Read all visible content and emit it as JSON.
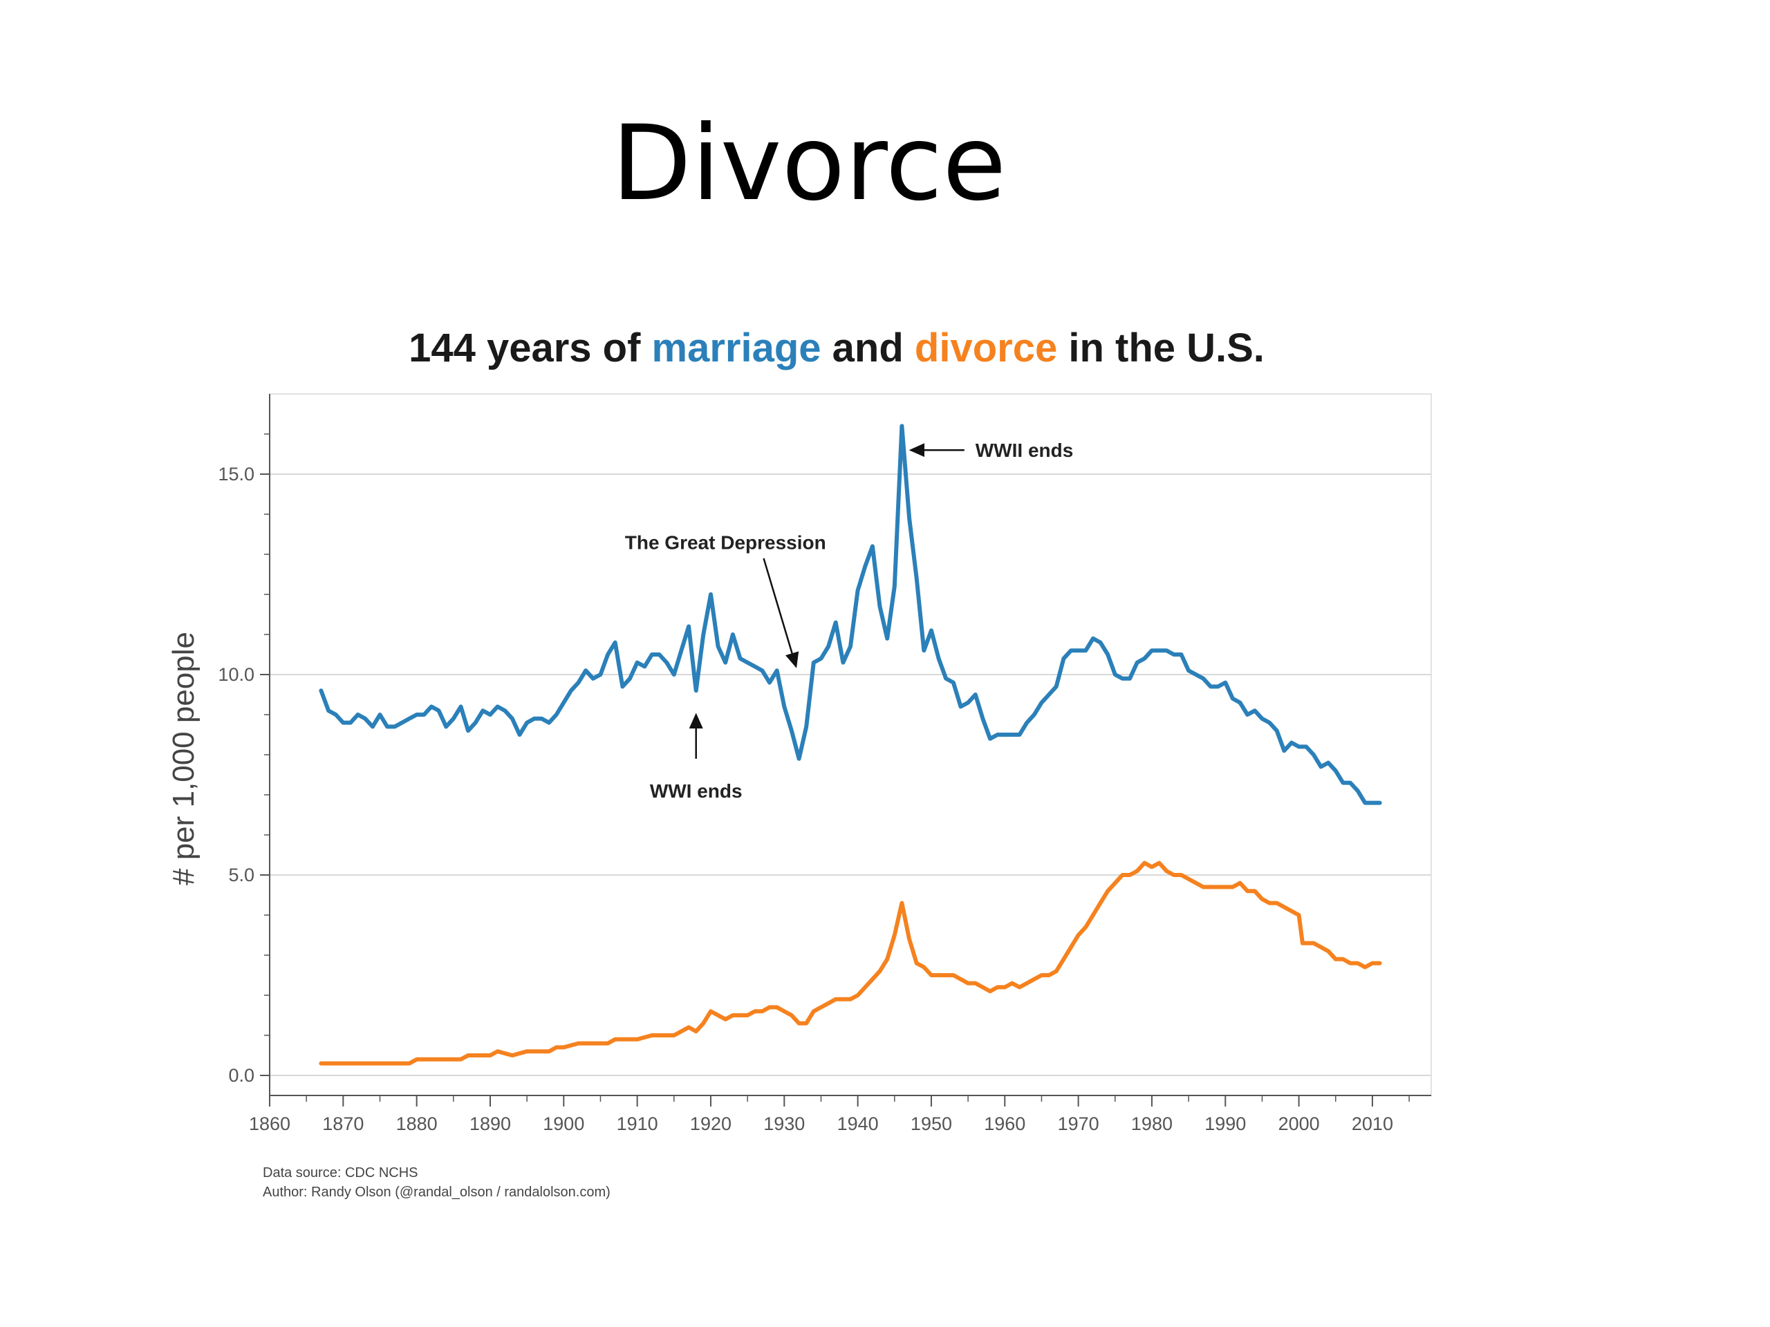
{
  "slide": {
    "title": "Divorce"
  },
  "chart_data": {
    "type": "line",
    "title_parts": [
      {
        "text": "144 years of ",
        "style": "plain"
      },
      {
        "text": "marriage",
        "style": "marriage"
      },
      {
        "text": " and ",
        "style": "plain"
      },
      {
        "text": "divorce",
        "style": "divorce"
      },
      {
        "text": " in the U.S.",
        "style": "plain"
      }
    ],
    "xlabel": "",
    "ylabel": "# per 1,000 people",
    "xlim": [
      1860,
      2018
    ],
    "ylim": [
      -0.5,
      17
    ],
    "x_ticks": [
      1860,
      1870,
      1880,
      1890,
      1900,
      1910,
      1920,
      1930,
      1940,
      1950,
      1960,
      1970,
      1980,
      1990,
      2000,
      2010
    ],
    "x_tick_labels": [
      "1860",
      "1870",
      "1880",
      "1890",
      "1900",
      "1910",
      "1920",
      "1930",
      "1940",
      "1950",
      "1960",
      "1970",
      "1980",
      "1990",
      "2000",
      "2010"
    ],
    "y_ticks": [
      0,
      5,
      10,
      15
    ],
    "y_tick_labels": [
      "0.0",
      "5.0",
      "10.0",
      "15.0"
    ],
    "grid": "horizontal",
    "colors": {
      "marriage": "#2b80b9",
      "divorce": "#f5821f",
      "grid": "#d8d8d8",
      "axis": "#555555"
    },
    "series": [
      {
        "key": "marriage",
        "points": [
          [
            1867,
            9.6
          ],
          [
            1868,
            9.1
          ],
          [
            1869,
            9.0
          ],
          [
            1870,
            8.8
          ],
          [
            1871,
            8.8
          ],
          [
            1872,
            9.0
          ],
          [
            1873,
            8.9
          ],
          [
            1874,
            8.7
          ],
          [
            1875,
            9.0
          ],
          [
            1876,
            8.7
          ],
          [
            1877,
            8.7
          ],
          [
            1878,
            8.8
          ],
          [
            1879,
            8.9
          ],
          [
            1880,
            9.0
          ],
          [
            1881,
            9.0
          ],
          [
            1882,
            9.2
          ],
          [
            1883,
            9.1
          ],
          [
            1884,
            8.7
          ],
          [
            1885,
            8.9
          ],
          [
            1886,
            9.2
          ],
          [
            1887,
            8.6
          ],
          [
            1888,
            8.8
          ],
          [
            1889,
            9.1
          ],
          [
            1890,
            9.0
          ],
          [
            1891,
            9.2
          ],
          [
            1892,
            9.1
          ],
          [
            1893,
            8.9
          ],
          [
            1894,
            8.5
          ],
          [
            1895,
            8.8
          ],
          [
            1896,
            8.9
          ],
          [
            1897,
            8.9
          ],
          [
            1898,
            8.8
          ],
          [
            1899,
            9.0
          ],
          [
            1900,
            9.3
          ],
          [
            1901,
            9.6
          ],
          [
            1902,
            9.8
          ],
          [
            1903,
            10.1
          ],
          [
            1904,
            9.9
          ],
          [
            1905,
            10.0
          ],
          [
            1906,
            10.5
          ],
          [
            1907,
            10.8
          ],
          [
            1908,
            9.7
          ],
          [
            1909,
            9.9
          ],
          [
            1910,
            10.3
          ],
          [
            1911,
            10.2
          ],
          [
            1912,
            10.5
          ],
          [
            1913,
            10.5
          ],
          [
            1914,
            10.3
          ],
          [
            1915,
            10.0
          ],
          [
            1916,
            10.6
          ],
          [
            1917,
            11.2
          ],
          [
            1918,
            9.6
          ],
          [
            1919,
            11.0
          ],
          [
            1920,
            12.0
          ],
          [
            1921,
            10.7
          ],
          [
            1922,
            10.3
          ],
          [
            1923,
            11.0
          ],
          [
            1924,
            10.4
          ],
          [
            1925,
            10.3
          ],
          [
            1926,
            10.2
          ],
          [
            1927,
            10.1
          ],
          [
            1928,
            9.8
          ],
          [
            1929,
            10.1
          ],
          [
            1930,
            9.2
          ],
          [
            1931,
            8.6
          ],
          [
            1932,
            7.9
          ],
          [
            1933,
            8.7
          ],
          [
            1934,
            10.3
          ],
          [
            1935,
            10.4
          ],
          [
            1936,
            10.7
          ],
          [
            1937,
            11.3
          ],
          [
            1938,
            10.3
          ],
          [
            1939,
            10.7
          ],
          [
            1940,
            12.1
          ],
          [
            1941,
            12.7
          ],
          [
            1942,
            13.2
          ],
          [
            1943,
            11.7
          ],
          [
            1944,
            10.9
          ],
          [
            1945,
            12.2
          ],
          [
            1946,
            16.2
          ],
          [
            1947,
            13.9
          ],
          [
            1948,
            12.4
          ],
          [
            1949,
            10.6
          ],
          [
            1950,
            11.1
          ],
          [
            1951,
            10.4
          ],
          [
            1952,
            9.9
          ],
          [
            1953,
            9.8
          ],
          [
            1954,
            9.2
          ],
          [
            1955,
            9.3
          ],
          [
            1956,
            9.5
          ],
          [
            1957,
            8.9
          ],
          [
            1958,
            8.4
          ],
          [
            1959,
            8.5
          ],
          [
            1960,
            8.5
          ],
          [
            1961,
            8.5
          ],
          [
            1962,
            8.5
          ],
          [
            1963,
            8.8
          ],
          [
            1964,
            9.0
          ],
          [
            1965,
            9.3
          ],
          [
            1966,
            9.5
          ],
          [
            1967,
            9.7
          ],
          [
            1968,
            10.4
          ],
          [
            1969,
            10.6
          ],
          [
            1970,
            10.6
          ],
          [
            1971,
            10.6
          ],
          [
            1972,
            10.9
          ],
          [
            1973,
            10.8
          ],
          [
            1974,
            10.5
          ],
          [
            1975,
            10.0
          ],
          [
            1976,
            9.9
          ],
          [
            1977,
            9.9
          ],
          [
            1978,
            10.3
          ],
          [
            1979,
            10.4
          ],
          [
            1980,
            10.6
          ],
          [
            1981,
            10.6
          ],
          [
            1982,
            10.6
          ],
          [
            1983,
            10.5
          ],
          [
            1984,
            10.5
          ],
          [
            1985,
            10.1
          ],
          [
            1986,
            10.0
          ],
          [
            1987,
            9.9
          ],
          [
            1988,
            9.7
          ],
          [
            1989,
            9.7
          ],
          [
            1990,
            9.8
          ],
          [
            1991,
            9.4
          ],
          [
            1992,
            9.3
          ],
          [
            1993,
            9.0
          ],
          [
            1994,
            9.1
          ],
          [
            1995,
            8.9
          ],
          [
            1996,
            8.8
          ],
          [
            1997,
            8.6
          ],
          [
            1998,
            8.1
          ],
          [
            1999,
            8.3
          ],
          [
            2000,
            8.2
          ],
          [
            2001,
            8.2
          ],
          [
            2002,
            8.0
          ],
          [
            2003,
            7.7
          ],
          [
            2004,
            7.8
          ],
          [
            2005,
            7.6
          ],
          [
            2006,
            7.3
          ],
          [
            2007,
            7.3
          ],
          [
            2008,
            7.1
          ],
          [
            2009,
            6.8
          ],
          [
            2010,
            6.8
          ],
          [
            2011,
            6.8
          ]
        ]
      },
      {
        "key": "divorce",
        "points": [
          [
            1867,
            0.3
          ],
          [
            1870,
            0.3
          ],
          [
            1875,
            0.3
          ],
          [
            1879,
            0.3
          ],
          [
            1880,
            0.4
          ],
          [
            1885,
            0.4
          ],
          [
            1886,
            0.4
          ],
          [
            1887,
            0.5
          ],
          [
            1890,
            0.5
          ],
          [
            1891,
            0.6
          ],
          [
            1893,
            0.5
          ],
          [
            1895,
            0.6
          ],
          [
            1898,
            0.6
          ],
          [
            1899,
            0.7
          ],
          [
            1900,
            0.7
          ],
          [
            1902,
            0.8
          ],
          [
            1906,
            0.8
          ],
          [
            1907,
            0.9
          ],
          [
            1910,
            0.9
          ],
          [
            1912,
            1.0
          ],
          [
            1915,
            1.0
          ],
          [
            1916,
            1.1
          ],
          [
            1917,
            1.2
          ],
          [
            1918,
            1.1
          ],
          [
            1919,
            1.3
          ],
          [
            1920,
            1.6
          ],
          [
            1921,
            1.5
          ],
          [
            1922,
            1.4
          ],
          [
            1923,
            1.5
          ],
          [
            1924,
            1.5
          ],
          [
            1925,
            1.5
          ],
          [
            1926,
            1.6
          ],
          [
            1927,
            1.6
          ],
          [
            1928,
            1.7
          ],
          [
            1929,
            1.7
          ],
          [
            1930,
            1.6
          ],
          [
            1931,
            1.5
          ],
          [
            1932,
            1.3
          ],
          [
            1933,
            1.3
          ],
          [
            1934,
            1.6
          ],
          [
            1935,
            1.7
          ],
          [
            1936,
            1.8
          ],
          [
            1937,
            1.9
          ],
          [
            1938,
            1.9
          ],
          [
            1939,
            1.9
          ],
          [
            1940,
            2.0
          ],
          [
            1941,
            2.2
          ],
          [
            1942,
            2.4
          ],
          [
            1943,
            2.6
          ],
          [
            1944,
            2.9
          ],
          [
            1945,
            3.5
          ],
          [
            1946,
            4.3
          ],
          [
            1947,
            3.4
          ],
          [
            1948,
            2.8
          ],
          [
            1949,
            2.7
          ],
          [
            1950,
            2.5
          ],
          [
            1951,
            2.5
          ],
          [
            1952,
            2.5
          ],
          [
            1953,
            2.5
          ],
          [
            1954,
            2.4
          ],
          [
            1955,
            2.3
          ],
          [
            1956,
            2.3
          ],
          [
            1957,
            2.2
          ],
          [
            1958,
            2.1
          ],
          [
            1959,
            2.2
          ],
          [
            1960,
            2.2
          ],
          [
            1961,
            2.3
          ],
          [
            1962,
            2.2
          ],
          [
            1963,
            2.3
          ],
          [
            1964,
            2.4
          ],
          [
            1965,
            2.5
          ],
          [
            1966,
            2.5
          ],
          [
            1967,
            2.6
          ],
          [
            1968,
            2.9
          ],
          [
            1969,
            3.2
          ],
          [
            1970,
            3.5
          ],
          [
            1971,
            3.7
          ],
          [
            1972,
            4.0
          ],
          [
            1973,
            4.3
          ],
          [
            1974,
            4.6
          ],
          [
            1975,
            4.8
          ],
          [
            1976,
            5.0
          ],
          [
            1977,
            5.0
          ],
          [
            1978,
            5.1
          ],
          [
            1979,
            5.3
          ],
          [
            1980,
            5.2
          ],
          [
            1981,
            5.3
          ],
          [
            1982,
            5.1
          ],
          [
            1983,
            5.0
          ],
          [
            1984,
            5.0
          ],
          [
            1985,
            4.9
          ],
          [
            1986,
            4.8
          ],
          [
            1987,
            4.7
          ],
          [
            1988,
            4.7
          ],
          [
            1989,
            4.7
          ],
          [
            1990,
            4.7
          ],
          [
            1991,
            4.7
          ],
          [
            1992,
            4.8
          ],
          [
            1993,
            4.6
          ],
          [
            1994,
            4.6
          ],
          [
            1995,
            4.4
          ],
          [
            1996,
            4.3
          ],
          [
            1997,
            4.3
          ],
          [
            1998,
            4.2
          ],
          [
            1999,
            4.1
          ],
          [
            2000,
            4.0
          ],
          [
            2000.5,
            3.3
          ],
          [
            2001,
            3.3
          ],
          [
            2002,
            3.3
          ],
          [
            2003,
            3.2
          ],
          [
            2004,
            3.1
          ],
          [
            2005,
            2.9
          ],
          [
            2006,
            2.9
          ],
          [
            2007,
            2.8
          ],
          [
            2008,
            2.8
          ],
          [
            2009,
            2.7
          ],
          [
            2010,
            2.8
          ],
          [
            2011,
            2.8
          ]
        ]
      }
    ],
    "annotations": [
      {
        "text": "WWII ends",
        "text_x": 1956,
        "text_y": 15.6,
        "arrow_from": [
          1954.5,
          15.6
        ],
        "arrow_to": [
          1947.2,
          15.6
        ],
        "anchor": "start"
      },
      {
        "text": "The Great Depression",
        "text_x": 1922,
        "text_y": 13.3,
        "arrow_from": [
          1927.2,
          12.9
        ],
        "arrow_to": [
          1931.6,
          10.2
        ],
        "anchor": "middle"
      },
      {
        "text": "WWI ends",
        "text_x": 1918,
        "text_y": 7.1,
        "arrow_from": [
          1918,
          7.9
        ],
        "arrow_to": [
          1918,
          9.0
        ],
        "anchor": "middle"
      }
    ],
    "footer": {
      "source": "Data source: CDC NCHS",
      "author": "Author: Randy Olson (@randal_olson / randalolson.com)"
    }
  }
}
